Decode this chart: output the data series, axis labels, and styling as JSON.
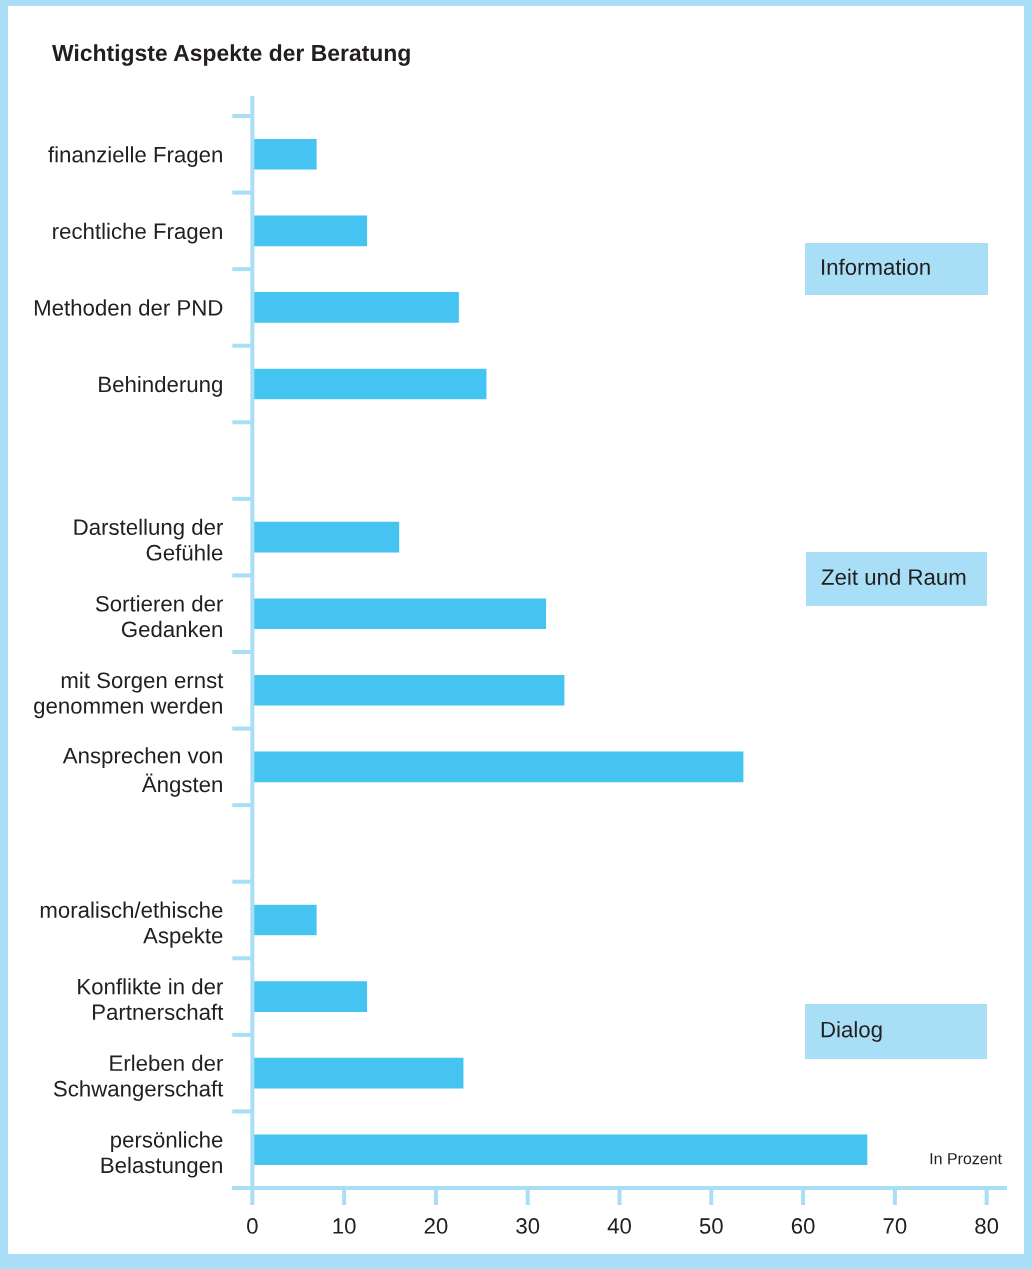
{
  "chart_data": {
    "type": "bar",
    "orientation": "horizontal",
    "title": "Wichtigste Aspekte der Beratung",
    "categories": [
      "finanzielle Fragen",
      "rechtliche Fragen",
      "Methoden der PND",
      "Behinderung",
      null,
      "Darstellung der\nGefühle",
      "Sortieren der\nGedanken",
      "mit Sorgen ernst\ngenommen werden",
      "Ansprechen von\nÄngsten",
      null,
      "moralisch/ethische\nAspekte",
      "Konflikte in der\nPartnerschaft",
      "Erleben der\nSchwangerschaft",
      "persönliche\nBelastungen"
    ],
    "values": [
      7,
      12.5,
      22.5,
      25.5,
      null,
      16,
      32,
      34,
      53.5,
      null,
      7,
      12.5,
      23,
      67
    ],
    "color": "#45c4f2",
    "xlim": [
      -2,
      82
    ],
    "xticks": [
      0,
      10,
      20,
      30,
      40,
      50,
      60,
      70,
      80
    ],
    "annotations": [
      "Information",
      "Zeit und Raum",
      "Dialog",
      "In Prozent"
    ]
  }
}
